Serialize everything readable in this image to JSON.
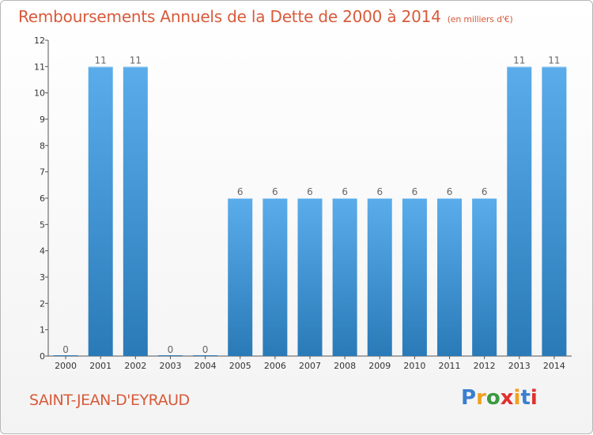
{
  "title": "Remboursements Annuels de la Dette de 2000 à 2014",
  "unit": "(en milliers d'€)",
  "commune": "SAINT-JEAN-D'EYRAUD",
  "logo": [
    "P",
    "r",
    "o",
    "x",
    "i",
    "t",
    "i"
  ],
  "colors": {
    "title": "#d85a3a",
    "bar_light": "#5aacea",
    "bar_dark": "#2a7ab8",
    "logo": [
      "#3a7fd0",
      "#f0a020",
      "#3a9a40",
      "#e03030",
      "#f0a020",
      "#3a7fd0",
      "#e03030"
    ]
  },
  "chart_data": {
    "type": "bar",
    "categories": [
      "2000",
      "2001",
      "2002",
      "2003",
      "2004",
      "2005",
      "2006",
      "2007",
      "2008",
      "2009",
      "2010",
      "2011",
      "2012",
      "2013",
      "2014"
    ],
    "values": [
      0,
      11,
      11,
      0,
      0,
      6,
      6,
      6,
      6,
      6,
      6,
      6,
      6,
      11,
      11
    ],
    "data_labels": [
      "0",
      "11",
      "11",
      "0",
      "0",
      "6",
      "6",
      "6",
      "6",
      "6",
      "6",
      "6",
      "6",
      "11",
      "11"
    ],
    "y_ticks": [
      0,
      1,
      2,
      3,
      4,
      5,
      6,
      7,
      8,
      9,
      10,
      11,
      12
    ],
    "ylim": [
      0,
      12
    ],
    "grid": false
  }
}
